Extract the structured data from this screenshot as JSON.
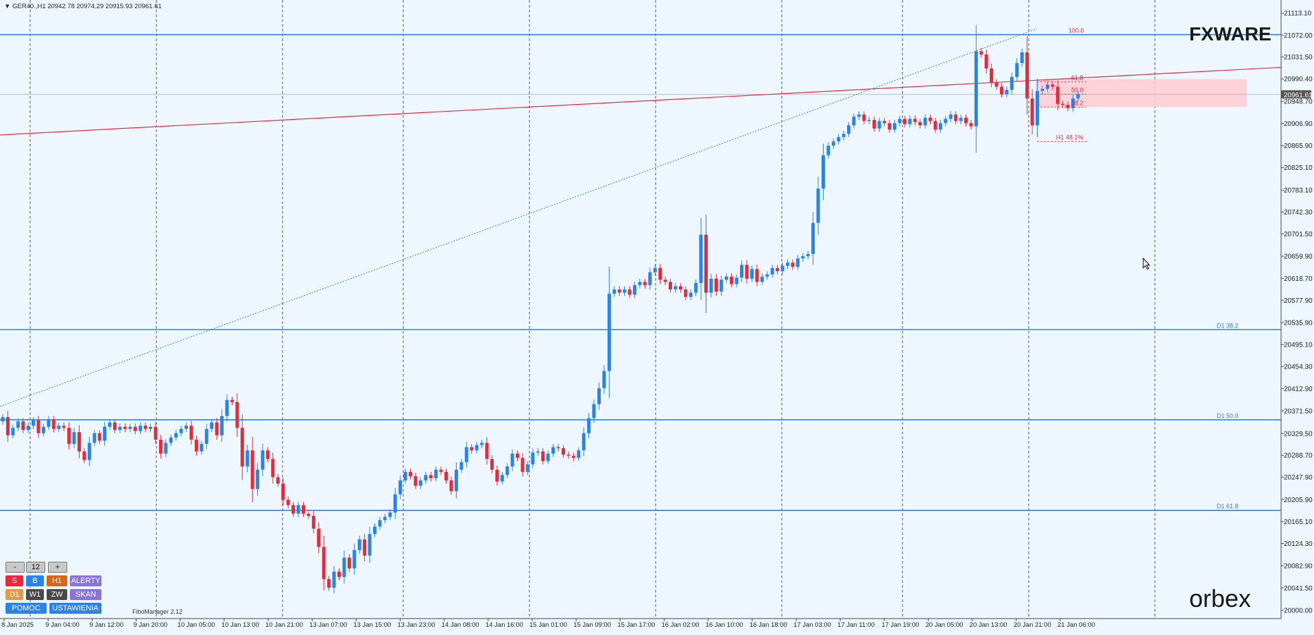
{
  "header": {
    "text": "▼ GER40.,H1  20942.78 20974.29 20915.93 20961.61"
  },
  "brand": {
    "fxware": "FXWARE",
    "orbex": "orbex"
  },
  "colors": {
    "background": "#eef7ff",
    "bull": "#2a83e6",
    "bear": "#e6293b",
    "level_line": "#2a83e6",
    "trend_line": "#e6293b",
    "fib_zone": "#ffcdd2",
    "price_tag": "#555555"
  },
  "panel": {
    "minus": "-",
    "value": "12",
    "plus": "+",
    "s": "S",
    "b": "B",
    "h1": "H1",
    "alerty": "ALERTY",
    "d1": "D1",
    "w1": "W1",
    "zw": "ZW",
    "skan": "SKAN",
    "pomoc": "POMOC",
    "ustawienia": "USTAWIENIA",
    "fibo_manager": "FiboManager 2.12"
  },
  "chart_data": {
    "type": "candlestick",
    "symbol": "GER40.",
    "timeframe": "H1",
    "last_price": "20961.61",
    "ylim": [
      19987.0,
      21135.0
    ],
    "y_ticks": [
      "21113.10",
      "21072.00",
      "21031.50",
      "20990.40",
      "20948.70",
      "20906.90",
      "20865.90",
      "20825.10",
      "20783.10",
      "20742.30",
      "20701.50",
      "20659.90",
      "20618.70",
      "20577.90",
      "20535.90",
      "20495.10",
      "20454.30",
      "20412.90",
      "20371.50",
      "20329.50",
      "20288.70",
      "20247.90",
      "20205.90",
      "20165.10",
      "20124.30",
      "20082.90",
      "20041.50",
      "20000.00"
    ],
    "x_ticks": [
      "8 Jan 2025",
      "9 Jan 04:00",
      "9 Jan 12:00",
      "9 Jan 20:00",
      "10 Jan 05:00",
      "10 Jan 13:00",
      "10 Jan 21:00",
      "13 Jan 07:00",
      "13 Jan 15:00",
      "13 Jan 23:00",
      "14 Jan 08:00",
      "14 Jan 16:00",
      "15 Jan 01:00",
      "15 Jan 09:00",
      "15 Jan 17:00",
      "16 Jan 02:00",
      "16 Jan 10:00",
      "16 Jan 18:00",
      "17 Jan 03:00",
      "17 Jan 11:00",
      "17 Jan 19:00",
      "20 Jan 05:00",
      "20 Jan 13:00",
      "20 Jan 21:00",
      "21 Jan 06:00"
    ],
    "levels": [
      {
        "label": "100.0",
        "price": 21073
      },
      {
        "label": "D1 38.2",
        "price": 20523
      },
      {
        "label": "D1 50.0",
        "price": 20355
      },
      {
        "label": "D1 61.8",
        "price": 20186
      }
    ],
    "fib_labels": [
      {
        "label": "61.8",
        "price": 20985
      },
      {
        "label": "50.0",
        "price": 20962
      },
      {
        "label": "38.2",
        "price": 20938
      },
      {
        "label": "H1 48.1%",
        "price": 20874
      }
    ],
    "closes": [
      20360,
      20326,
      20340,
      20352,
      20336,
      20344,
      20354,
      20330,
      20342,
      20356,
      20338,
      20344,
      20340,
      20310,
      20332,
      20296,
      20280,
      20312,
      20330,
      20316,
      20342,
      20350,
      20336,
      20342,
      20338,
      20342,
      20334,
      20344,
      20338,
      20342,
      20318,
      20292,
      20312,
      20322,
      20330,
      20338,
      20344,
      20318,
      20296,
      20310,
      20338,
      20350,
      20326,
      20362,
      20392,
      20388,
      20340,
      20268,
      20298,
      20226,
      20262,
      20298,
      20282,
      20248,
      20236,
      20206,
      20196,
      20180,
      20196,
      20180,
      20176,
      20152,
      20118,
      20058,
      20042,
      20072,
      20062,
      20098,
      20078,
      20112,
      20132,
      20102,
      20142,
      20156,
      20168,
      20174,
      20182,
      20216,
      20242,
      20258,
      20250,
      20232,
      20242,
      20252,
      20246,
      20262,
      20258,
      20242,
      20222,
      20262,
      20276,
      20304,
      20298,
      20308,
      20312,
      20282,
      20262,
      20240,
      20252,
      20268,
      20292,
      20284,
      20258,
      20272,
      20294,
      20296,
      20278,
      20292,
      20304,
      20302,
      20290,
      20288,
      20284,
      20298,
      20330,
      20358,
      20384,
      20414,
      20446,
      20590,
      20598,
      20592,
      20598,
      20588,
      20606,
      20612,
      20606,
      20630,
      20638,
      20616,
      20612,
      20598,
      20604,
      20598,
      20584,
      20592,
      20610,
      20700,
      20592,
      20618,
      20594,
      20616,
      20622,
      20608,
      20620,
      20644,
      20618,
      20636,
      20612,
      20622,
      20626,
      20638,
      20632,
      20642,
      20648,
      20640,
      20656,
      20660,
      20664,
      20722,
      20786,
      20848,
      20866,
      20874,
      20882,
      20888,
      20904,
      20920,
      20924,
      20912,
      20914,
      20898,
      20912,
      20908,
      20896,
      20908,
      20916,
      20906,
      20916,
      20910,
      20904,
      20918,
      20912,
      20896,
      20908,
      20916,
      20924,
      20912,
      20918,
      20908,
      20902,
      21042,
      21036,
      21010,
      20984,
      20976,
      20962,
      20970,
      20994,
      21020,
      21040,
      20954,
      20904,
      20968,
      20972,
      20980,
      20976,
      20944,
      20942,
      20936,
      20954,
      20962
    ]
  }
}
